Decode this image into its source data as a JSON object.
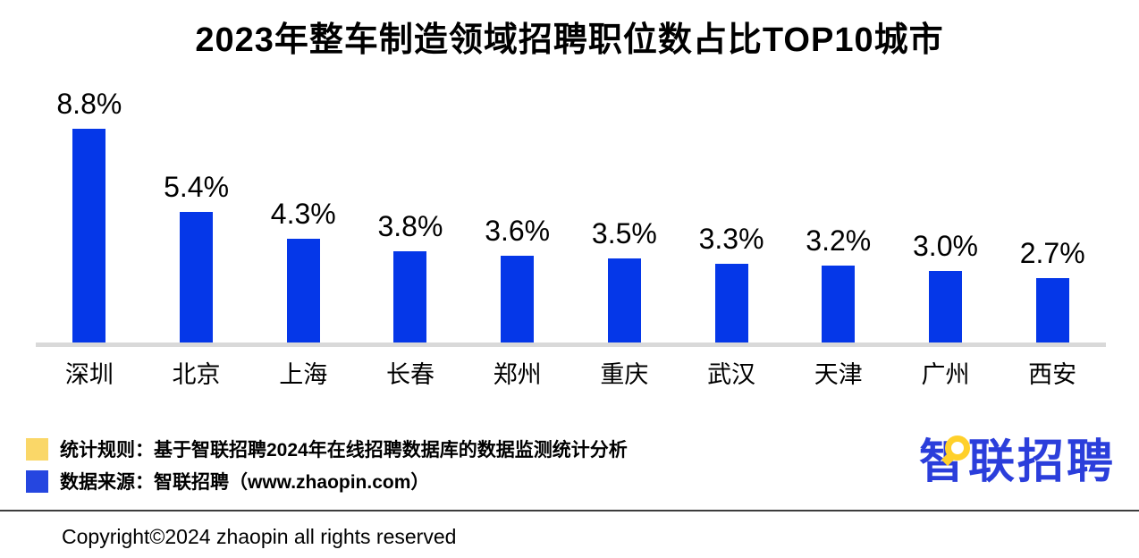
{
  "title": "2023年整车制造领域招聘职位数占比TOP10城市",
  "chart_data": {
    "type": "bar",
    "title": "2023年整车制造领域招聘职位数占比TOP10城市",
    "categories": [
      "深圳",
      "北京",
      "上海",
      "长春",
      "郑州",
      "重庆",
      "武汉",
      "天津",
      "广州",
      "西安"
    ],
    "values": [
      8.8,
      5.4,
      4.3,
      3.8,
      3.6,
      3.5,
      3.3,
      3.2,
      3.0,
      2.7
    ],
    "value_labels": [
      "8.8%",
      "5.4%",
      "4.3%",
      "3.8%",
      "3.6%",
      "3.5%",
      "3.3%",
      "3.2%",
      "3.0%",
      "2.7%"
    ],
    "xlabel": "",
    "ylabel": "",
    "ylim": [
      0,
      10
    ],
    "grid": false,
    "legend_position": "none",
    "bar_color": "#0537e8",
    "axis_color": "#d9d9d9",
    "value_labels_position": "above-bars"
  },
  "notes": [
    {
      "swatch_color": "#fad768",
      "text": "统计规则：基于智联招聘2024年在线招聘数据库的数据监测统计分析"
    },
    {
      "swatch_color": "#2546e0",
      "text": "数据来源：智联招聘（www.zhaopin.com）"
    }
  ],
  "logo": {
    "text": "智联招聘",
    "color": "#2b3edb",
    "accent_color": "#ffd02a"
  },
  "footer": {
    "copyright": "Copyright©2024 zhaopin all rights reserved"
  }
}
